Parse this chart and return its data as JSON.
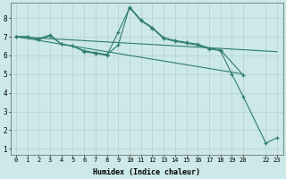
{
  "xlabel": "Humidex (Indice chaleur)",
  "background_color": "#cce8e8",
  "line_color": "#2e7d6e",
  "grid_color": "#b8d4d4",
  "xlim": [
    -0.5,
    23.5
  ],
  "ylim": [
    0.7,
    8.8
  ],
  "yticks": [
    1,
    2,
    3,
    4,
    5,
    6,
    7,
    8
  ],
  "xticks": [
    0,
    1,
    2,
    3,
    4,
    5,
    6,
    7,
    8,
    9,
    10,
    11,
    12,
    13,
    14,
    15,
    16,
    17,
    18,
    19,
    20,
    22,
    23
  ],
  "xtick_labels": [
    "0",
    "1",
    "2",
    "3",
    "4",
    "5",
    "6",
    "7",
    "8",
    "9",
    "10",
    "11",
    "12",
    "13",
    "14",
    "15",
    "16",
    "17",
    "18",
    "19",
    "20",
    "22",
    "23"
  ],
  "lines": [
    {
      "x": [
        0,
        1,
        2,
        3,
        4,
        5,
        6,
        7,
        8,
        9,
        10,
        11,
        12,
        13,
        14,
        15,
        16,
        17,
        18,
        19,
        20,
        22,
        23
      ],
      "y": [
        7.0,
        7.0,
        6.9,
        7.1,
        6.6,
        6.5,
        6.2,
        6.1,
        6.0,
        7.25,
        8.55,
        7.85,
        7.45,
        6.9,
        6.75,
        6.65,
        6.55,
        6.35,
        6.25,
        5.0,
        3.8,
        1.3,
        1.6
      ],
      "marker": true
    },
    {
      "x": [
        0,
        1,
        2,
        3,
        4,
        5,
        6,
        7,
        8,
        9,
        10,
        11,
        12,
        13,
        14,
        15,
        16,
        17,
        18,
        20
      ],
      "y": [
        7.0,
        7.0,
        6.85,
        7.05,
        6.6,
        6.5,
        6.25,
        6.15,
        6.05,
        6.55,
        8.6,
        7.9,
        7.5,
        6.95,
        6.8,
        6.7,
        6.6,
        6.4,
        6.3,
        4.95
      ],
      "marker": true
    },
    {
      "x": [
        0,
        20
      ],
      "y": [
        7.0,
        5.0
      ],
      "marker": false
    },
    {
      "x": [
        0,
        23
      ],
      "y": [
        7.0,
        6.2
      ],
      "marker": false
    }
  ]
}
